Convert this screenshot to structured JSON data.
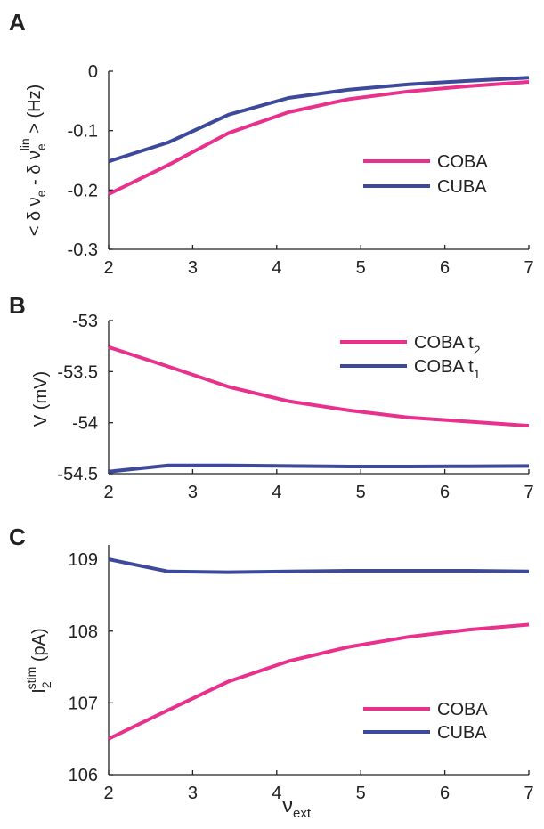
{
  "colors": {
    "COBA": "#e8308c",
    "CUBA": "#3d4a9c",
    "axis": "#222222",
    "text": "#222222"
  },
  "x_label_base": "ν",
  "x_label_sub": "ext",
  "chart_data": [
    {
      "type": "line",
      "panel": "A",
      "ylabel_parts": {
        "lt": "< δ ν",
        "e1": "e",
        "minus": " - δ ν",
        "e2": "e",
        "lin": "lin",
        "gt": " > (Hz)"
      },
      "xlim": [
        2,
        7
      ],
      "ylim": [
        -0.3,
        0
      ],
      "x_ticks": [
        2,
        3,
        4,
        5,
        6,
        7
      ],
      "x_tick_labels": [
        "2",
        "3",
        "4",
        "5",
        "6",
        "7"
      ],
      "y_ticks": [
        0,
        -0.1,
        -0.2,
        -0.3
      ],
      "y_tick_labels": [
        "0",
        "-0.1",
        "-0.2",
        "-0.3"
      ],
      "legend_location": "right",
      "legend_entries": [
        {
          "name": "COBA",
          "sub": ""
        },
        {
          "name": "CUBA",
          "sub": ""
        }
      ],
      "series": [
        {
          "name": "COBA",
          "x": [
            2,
            2.71,
            3.43,
            4.14,
            4.86,
            5.57,
            6.29,
            7
          ],
          "y": [
            -0.207,
            -0.158,
            -0.104,
            -0.069,
            -0.047,
            -0.034,
            -0.025,
            -0.018
          ]
        },
        {
          "name": "CUBA",
          "x": [
            2,
            2.71,
            3.43,
            4.14,
            4.86,
            5.57,
            6.29,
            7
          ],
          "y": [
            -0.152,
            -0.12,
            -0.073,
            -0.045,
            -0.031,
            -0.022,
            -0.016,
            -0.011
          ]
        }
      ]
    },
    {
      "type": "line",
      "panel": "B",
      "ylabel": "V (mV)",
      "xlim": [
        2,
        7
      ],
      "ylim": [
        -54.5,
        -53
      ],
      "x_ticks": [
        2,
        3,
        4,
        5,
        6,
        7
      ],
      "x_tick_labels": [
        "2",
        "3",
        "4",
        "5",
        "6",
        "7"
      ],
      "y_ticks": [
        -53,
        -53.5,
        -54,
        -54.5
      ],
      "y_tick_labels": [
        "-53",
        "-53.5",
        "-54",
        "-54.5"
      ],
      "legend_location": "top-right",
      "legend_entries": [
        {
          "name": "COBA t",
          "sub": "2"
        },
        {
          "name": "COBA t",
          "sub": "1"
        }
      ],
      "series": [
        {
          "name": "COBA t2",
          "x": [
            2,
            2.71,
            3.43,
            4.14,
            4.86,
            5.57,
            6.29,
            7
          ],
          "y": [
            -53.26,
            -53.45,
            -53.65,
            -53.79,
            -53.88,
            -53.95,
            -53.99,
            -54.03
          ]
        },
        {
          "name": "COBA t1",
          "x": [
            2,
            2.71,
            3.43,
            4.14,
            4.86,
            5.57,
            6.29,
            7
          ],
          "y": [
            -54.48,
            -54.42,
            -54.42,
            -54.425,
            -54.43,
            -54.43,
            -54.428,
            -54.425
          ]
        }
      ]
    },
    {
      "type": "line",
      "panel": "C",
      "ylabel_parts": {
        "base": "I",
        "sub": "2",
        "sup": "stim",
        "rest": " (pA)"
      },
      "xlim": [
        2,
        7
      ],
      "ylim": [
        106,
        109.2
      ],
      "x_ticks": [
        2,
        3,
        4,
        5,
        6,
        7
      ],
      "x_tick_labels": [
        "2",
        "3",
        "4",
        "5",
        "6",
        "7"
      ],
      "y_ticks": [
        109,
        108,
        107,
        106
      ],
      "y_tick_labels": [
        "109",
        "108",
        "107",
        "106"
      ],
      "legend_location": "bottom-right",
      "legend_entries": [
        {
          "name": "COBA",
          "sub": ""
        },
        {
          "name": "CUBA",
          "sub": ""
        }
      ],
      "series": [
        {
          "name": "COBA",
          "x": [
            2,
            2.71,
            3.43,
            4.14,
            4.86,
            5.57,
            6.29,
            7
          ],
          "y": [
            106.5,
            106.9,
            107.3,
            107.58,
            107.78,
            107.92,
            108.02,
            108.09
          ]
        },
        {
          "name": "CUBA",
          "x": [
            2,
            2.71,
            3.43,
            4.14,
            4.86,
            5.57,
            6.29,
            7
          ],
          "y": [
            109.0,
            108.83,
            108.82,
            108.83,
            108.84,
            108.84,
            108.84,
            108.83
          ]
        }
      ]
    }
  ]
}
